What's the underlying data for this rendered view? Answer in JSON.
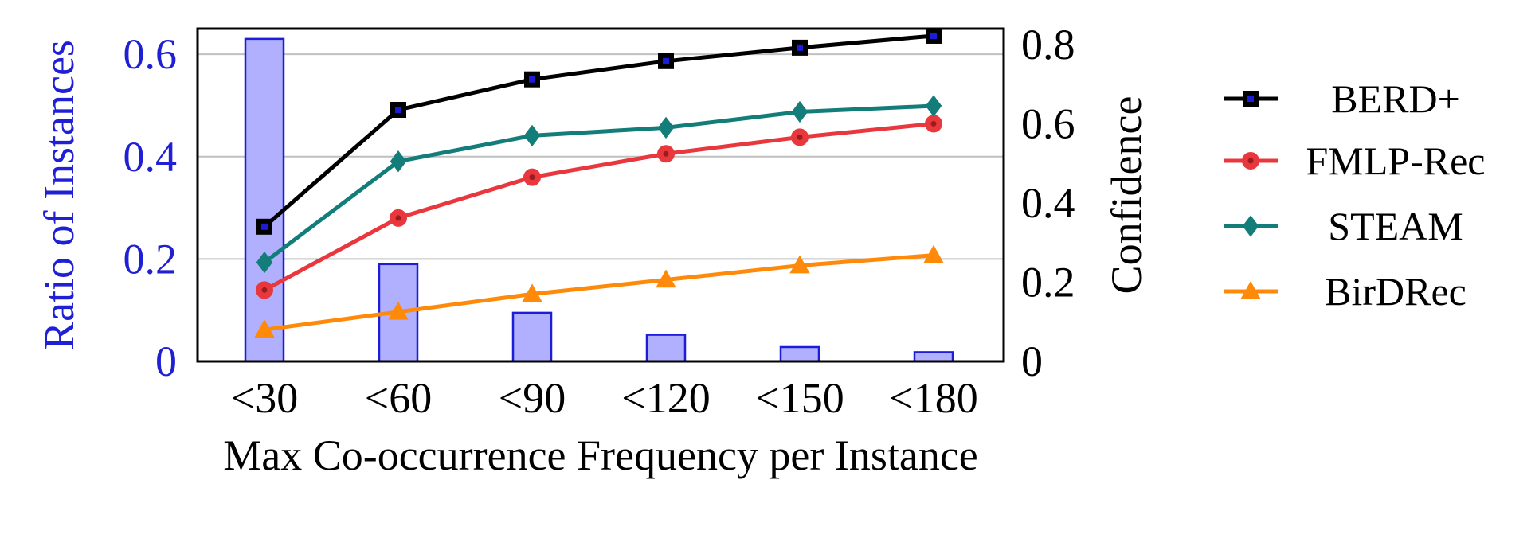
{
  "chart_data": {
    "type": "bar+line",
    "categories": [
      "<30",
      "<60",
      "<90",
      "<120",
      "<150",
      "<180"
    ],
    "xlabel": "Max Co-occurrence Frequency per Instance",
    "ylabel_left": "Ratio of Instances",
    "ylabel_right": "Confidence",
    "ylim_left": [
      0,
      0.65
    ],
    "ylim_right": [
      0,
      0.84
    ],
    "yticks_left": [
      0,
      0.2,
      0.4,
      0.6
    ],
    "yticks_left_labels": [
      "0",
      "0.2",
      "0.4",
      "0.6"
    ],
    "yticks_right": [
      0,
      0.2,
      0.4,
      0.6,
      0.8
    ],
    "yticks_right_labels": [
      "0",
      "0.2",
      "0.4",
      "0.6",
      "0.8"
    ],
    "grid": "horizontal at left-axis ticks",
    "bars": {
      "name": "Ratio of Instances",
      "axis": "left",
      "values": [
        0.63,
        0.19,
        0.095,
        0.052,
        0.028,
        0.018
      ]
    },
    "series": [
      {
        "name": "BERD+",
        "axis": "right",
        "color": "#000000",
        "marker": "square",
        "values": [
          0.34,
          0.635,
          0.712,
          0.758,
          0.792,
          0.822
        ]
      },
      {
        "name": "FMLP-Rec",
        "axis": "right",
        "color": "#e8383d",
        "marker": "circle",
        "values": [
          0.18,
          0.362,
          0.465,
          0.524,
          0.566,
          0.6
        ]
      },
      {
        "name": "STEAM",
        "axis": "right",
        "color": "#127d79",
        "marker": "diamond",
        "values": [
          0.25,
          0.505,
          0.57,
          0.59,
          0.63,
          0.645
        ]
      },
      {
        "name": "BirDRec",
        "axis": "right",
        "color": "#ff8a0a",
        "marker": "triangle",
        "values": [
          0.08,
          0.125,
          0.17,
          0.206,
          0.242,
          0.268
        ]
      }
    ],
    "legend": "right"
  },
  "colors": {
    "bar_fill": "#b0b0ff",
    "bar_edge": "#1c1cd9",
    "left_axis": "#1f1fd6",
    "grid": "#c0c0c0"
  }
}
